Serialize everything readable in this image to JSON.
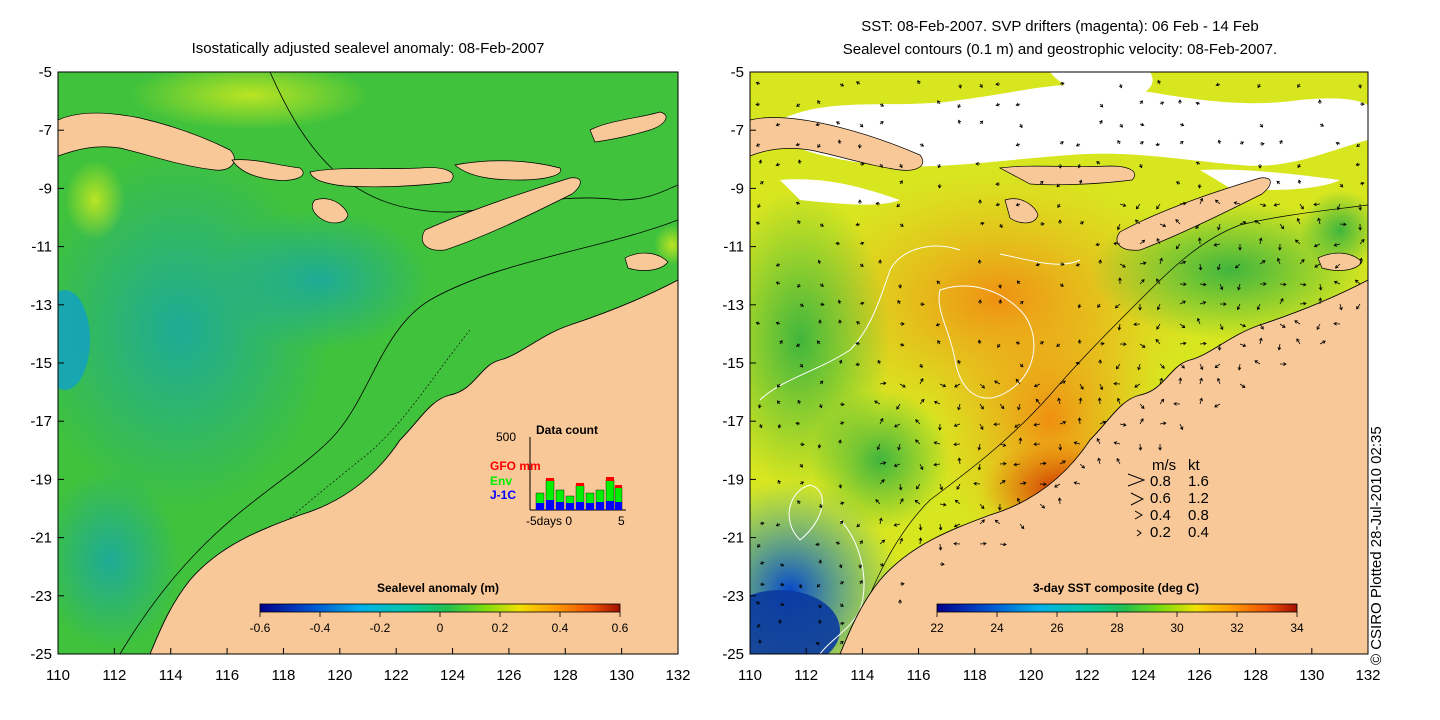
{
  "left_panel": {
    "title": "Isostatically adjusted sealevel anomaly: 08-Feb-2007",
    "colorbar_title": "Sealevel anomaly (m)",
    "colorbar_ticks": [
      "-0.6",
      "-0.4",
      "-0.2",
      "0",
      "0.2",
      "0.4",
      "0.6"
    ],
    "colormap": [
      "#00008b",
      "#0050d0",
      "#00b0e8",
      "#00c8a0",
      "#22c050",
      "#7adc10",
      "#f0e000",
      "#ff9a00",
      "#f05000",
      "#a01000"
    ],
    "inset": {
      "title": "Data count",
      "ymax": "500",
      "series": [
        {
          "name": "GFO mm",
          "color": "#ff0000"
        },
        {
          "name": "Env",
          "color": "#00ee00"
        },
        {
          "name": "J-1C",
          "color": "#0000ff"
        }
      ],
      "xlabel": "-5days 0",
      "xmax": "5"
    }
  },
  "right_panel": {
    "title_line1": "SST: 08-Feb-2007. SVP drifters (magenta): 06 Feb - 14 Feb",
    "title_line2": "Sealevel contours (0.1 m) and geostrophic velocity: 08-Feb-2007.",
    "colorbar_title": "3-day SST composite (deg C)",
    "colorbar_ticks": [
      "22",
      "24",
      "26",
      "28",
      "30",
      "32",
      "34"
    ],
    "colormap": [
      "#00008b",
      "#0050d0",
      "#00b0e8",
      "#00c8a0",
      "#22c050",
      "#7adc10",
      "#f0e000",
      "#ff9a00",
      "#f05000",
      "#a01000"
    ],
    "velocity_legend": {
      "header_ms": "m/s",
      "header_kt": "kt",
      "rows": [
        {
          "ms": "0.8",
          "kt": "1.6"
        },
        {
          "ms": "0.6",
          "kt": "1.2"
        },
        {
          "ms": "0.4",
          "kt": "0.8"
        },
        {
          "ms": "0.2",
          "kt": "0.4"
        }
      ]
    }
  },
  "axes": {
    "lat_ticks": [
      "-5",
      "-7",
      "-9",
      "-11",
      "-13",
      "-15",
      "-17",
      "-19",
      "-21",
      "-23",
      "-25"
    ],
    "lon_ticks": [
      "110",
      "112",
      "114",
      "116",
      "118",
      "120",
      "122",
      "124",
      "126",
      "128",
      "130",
      "132"
    ]
  },
  "colors": {
    "land": "#f9c898",
    "ocean_green": "#36c23a",
    "warm_orange": "#f39a18"
  },
  "copyright": "© CSIRO Plotted 28-Jul-2010 02:35"
}
